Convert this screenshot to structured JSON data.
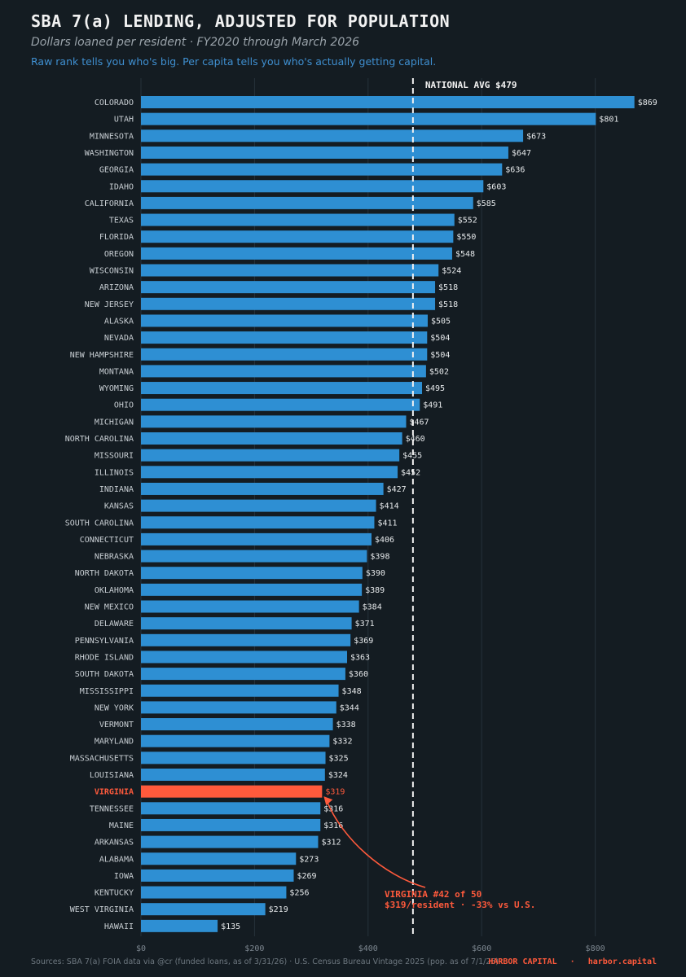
{
  "header": {
    "title": "SBA 7(a) LENDING, ADJUSTED FOR POPULATION",
    "subtitle": "Dollars loaned per resident  ·  FY2020 through March 2026",
    "tagline": "Raw rank tells you who's big. Per capita tells you who's actually getting capital."
  },
  "footer": {
    "sources": "Sources: SBA 7(a) FOIA data via @cr (funded loans, as of 3/31/26) · U.S. Census Bureau Vintage 2025 (pop. as of 7/1/25)",
    "brand": "HARBOR CAPITAL",
    "separator": "·",
    "site": "harbor.capital"
  },
  "colors": {
    "background": "#141c22",
    "bar": "#2e8fd3",
    "highlight": "#ff5a3c",
    "text": "#c8ced3",
    "value_text": "#e6e9eb",
    "avg_line": "#f2f2f2",
    "grid": "#26323b"
  },
  "chart_data": {
    "type": "bar",
    "orientation": "horizontal",
    "xlim": [
      0,
      880
    ],
    "xticks": [
      0,
      200,
      400,
      600,
      800
    ],
    "xtick_labels": [
      "$0",
      "$200",
      "$400",
      "$600",
      "$800"
    ],
    "grid": true,
    "value_prefix": "$",
    "categories": [
      "COLORADO",
      "UTAH",
      "MINNESOTA",
      "WASHINGTON",
      "GEORGIA",
      "IDAHO",
      "CALIFORNIA",
      "TEXAS",
      "FLORIDA",
      "OREGON",
      "WISCONSIN",
      "ARIZONA",
      "NEW JERSEY",
      "ALASKA",
      "NEVADA",
      "NEW HAMPSHIRE",
      "MONTANA",
      "WYOMING",
      "OHIO",
      "MICHIGAN",
      "NORTH CAROLINA",
      "MISSOURI",
      "ILLINOIS",
      "INDIANA",
      "KANSAS",
      "SOUTH CAROLINA",
      "CONNECTICUT",
      "NEBRASKA",
      "NORTH DAKOTA",
      "OKLAHOMA",
      "NEW MEXICO",
      "DELAWARE",
      "PENNSYLVANIA",
      "RHODE ISLAND",
      "SOUTH DAKOTA",
      "MISSISSIPPI",
      "NEW YORK",
      "VERMONT",
      "MARYLAND",
      "MASSACHUSETTS",
      "LOUISIANA",
      "VIRGINIA",
      "TENNESSEE",
      "MAINE",
      "ARKANSAS",
      "ALABAMA",
      "IOWA",
      "KENTUCKY",
      "WEST VIRGINIA",
      "HAWAII"
    ],
    "values": [
      869,
      801,
      673,
      647,
      636,
      603,
      585,
      552,
      550,
      548,
      524,
      518,
      518,
      505,
      504,
      504,
      502,
      495,
      491,
      467,
      460,
      455,
      452,
      427,
      414,
      411,
      406,
      398,
      390,
      389,
      384,
      371,
      369,
      363,
      360,
      348,
      344,
      338,
      332,
      325,
      324,
      319,
      316,
      316,
      312,
      273,
      269,
      256,
      219,
      135
    ],
    "highlight": "VIRGINIA",
    "reference_line": {
      "value": 479,
      "label": "NATIONAL AVG  $479"
    },
    "annotation": {
      "line1": "VIRGINIA  #42 of 50",
      "line2": "$319/resident  ·  -33% vs U.S."
    }
  }
}
